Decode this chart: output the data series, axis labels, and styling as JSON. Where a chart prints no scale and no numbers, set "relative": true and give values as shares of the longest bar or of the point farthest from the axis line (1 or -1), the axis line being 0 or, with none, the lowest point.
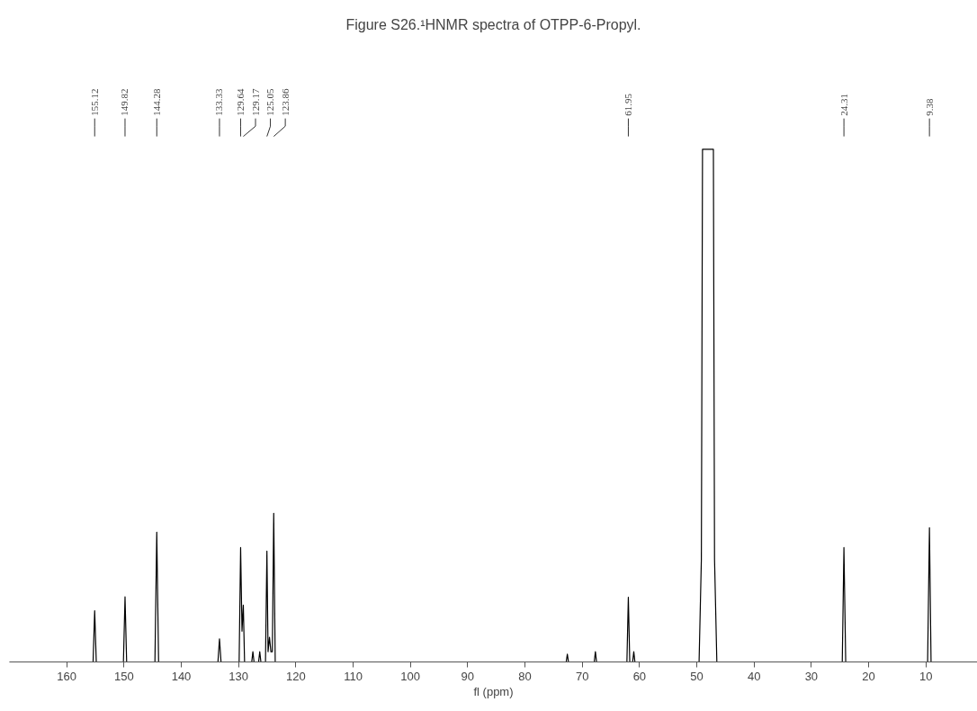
{
  "chart_data": {
    "type": "line",
    "title": "Figure S26.¹HNMR spectra of OTPP-6-Propyl.",
    "xlabel": "fl (ppm)",
    "relative": true,
    "xlim": [
      170,
      1
    ],
    "xticks": [
      160,
      150,
      140,
      130,
      120,
      110,
      100,
      90,
      80,
      70,
      60,
      50,
      40,
      30,
      20,
      10
    ],
    "series": [
      {
        "color": "#000000",
        "x": [
          170,
          155.4,
          155.12,
          154.84,
          150.1,
          149.82,
          149.54,
          144.6,
          144.28,
          143.96,
          133.6,
          133.33,
          133.06,
          129.9,
          129.64,
          129.4,
          129.17,
          128.95,
          127.7,
          127.5,
          127.3,
          126.5,
          126.3,
          126.1,
          125.3,
          125.05,
          124.85,
          124.6,
          124.35,
          124.1,
          123.86,
          123.6,
          72.8,
          72.6,
          72.4,
          67.9,
          67.7,
          67.5,
          62.2,
          61.95,
          61.7,
          61.2,
          61.0,
          60.8,
          49.6,
          49.2,
          49.0,
          47.1,
          46.9,
          46.5,
          24.6,
          24.31,
          24.0,
          9.7,
          9.38,
          9.1,
          1
        ],
        "values": [
          0,
          0,
          0.1,
          0,
          0,
          0.127,
          0,
          0,
          0.253,
          0,
          0,
          0.045,
          0,
          0,
          0.223,
          0.06,
          0.111,
          0,
          0,
          0.02,
          0,
          0,
          0.02,
          0,
          0,
          0.216,
          0.02,
          0.048,
          0.02,
          0.02,
          0.29,
          0,
          0,
          0.015,
          0,
          0,
          0.02,
          0,
          0,
          0.126,
          0,
          0,
          0.02,
          0,
          0,
          0.2,
          1,
          1,
          0.2,
          0,
          0,
          0.223,
          0,
          0,
          0.262,
          0,
          0
        ]
      }
    ],
    "annotations": [
      {
        "text": "155.12",
        "x": 155.12
      },
      {
        "text": "149.82",
        "x": 149.82
      },
      {
        "text": "144.28",
        "x": 144.28
      },
      {
        "text": "133.33",
        "x": 133.33
      },
      {
        "text": "129.64",
        "x": 129.64
      },
      {
        "text": "129.17",
        "x": 129.17
      },
      {
        "text": "125.05",
        "x": 125.05
      },
      {
        "text": "123.86",
        "x": 123.86
      },
      {
        "text": "61.95",
        "x": 61.95
      },
      {
        "text": "24.31",
        "x": 24.31
      },
      {
        "text": "9.38",
        "x": 9.38
      }
    ]
  }
}
